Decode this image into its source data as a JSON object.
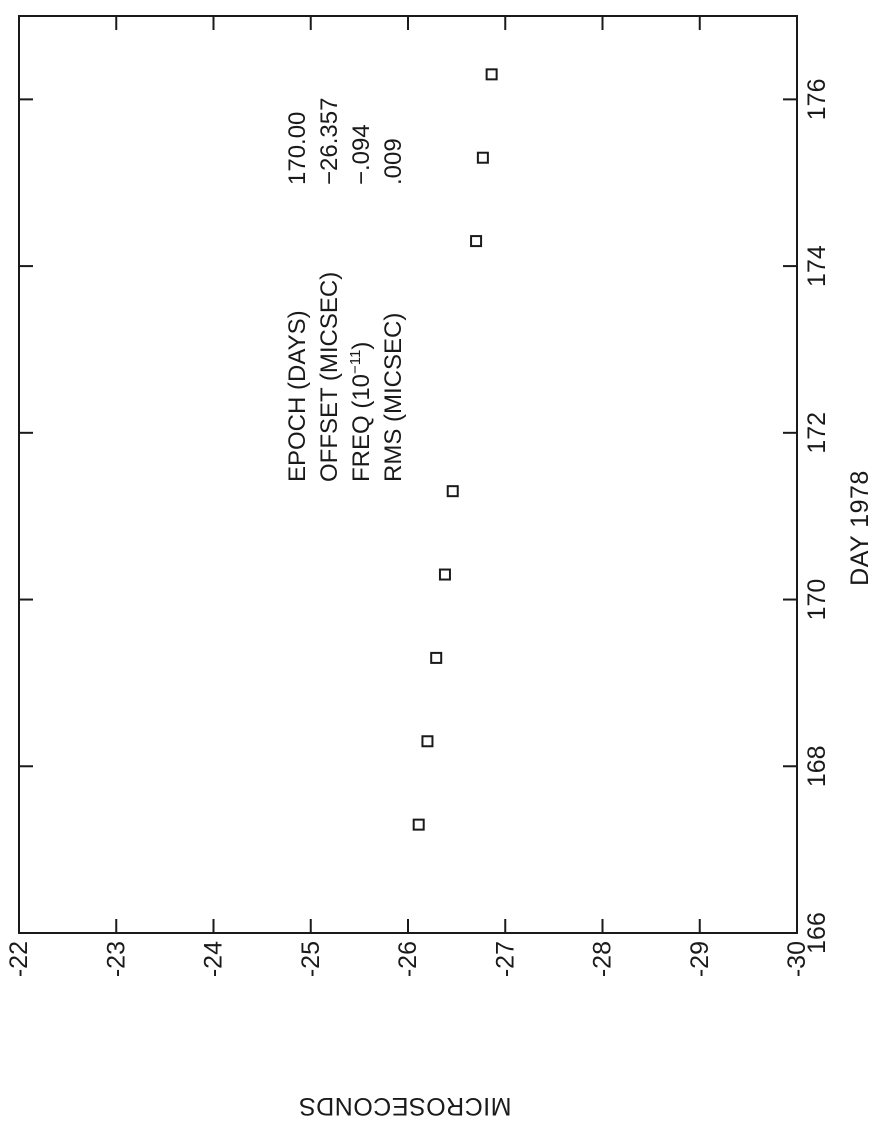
{
  "chart_data": {
    "type": "scatter",
    "title": "",
    "xlabel": "DAY 1978",
    "ylabel": "MICROSECONDS",
    "xlim": [
      166,
      177
    ],
    "ylim": [
      -30,
      -22
    ],
    "x_ticks": [
      166,
      168,
      170,
      172,
      174,
      176
    ],
    "x_tick_labels": [
      "166",
      "168",
      "170",
      "172",
      "174",
      "176"
    ],
    "y_ticks": [
      -22,
      -23,
      -24,
      -25,
      -26,
      -27,
      -28,
      -29,
      -30
    ],
    "y_tick_labels": [
      "-22",
      "-23",
      "-24",
      "-25",
      "-26",
      "-27",
      "-28",
      "-29",
      "-30"
    ],
    "grid": false,
    "marker": "open-square",
    "series": [
      {
        "points": [
          {
            "x": 167.3,
            "y": -26.11
          },
          {
            "x": 168.3,
            "y": -26.2
          },
          {
            "x": 169.3,
            "y": -26.29
          },
          {
            "x": 170.3,
            "y": -26.38
          },
          {
            "x": 171.3,
            "y": -26.46
          },
          {
            "x": 174.3,
            "y": -26.7
          },
          {
            "x": 175.3,
            "y": -26.77
          },
          {
            "x": 176.3,
            "y": -26.86
          }
        ]
      }
    ],
    "annotation": {
      "rows": [
        {
          "label": "EPOCH (DAYS)",
          "value": "170.00"
        },
        {
          "label": "OFFSET (MICSEC)",
          "value": "−26.357"
        },
        {
          "label": "FREQ (10",
          "label_sup": "−11",
          "label_tail": ")",
          "value": "−.094"
        },
        {
          "label": "RMS (MICSEC)",
          "value": ".009"
        }
      ]
    }
  }
}
